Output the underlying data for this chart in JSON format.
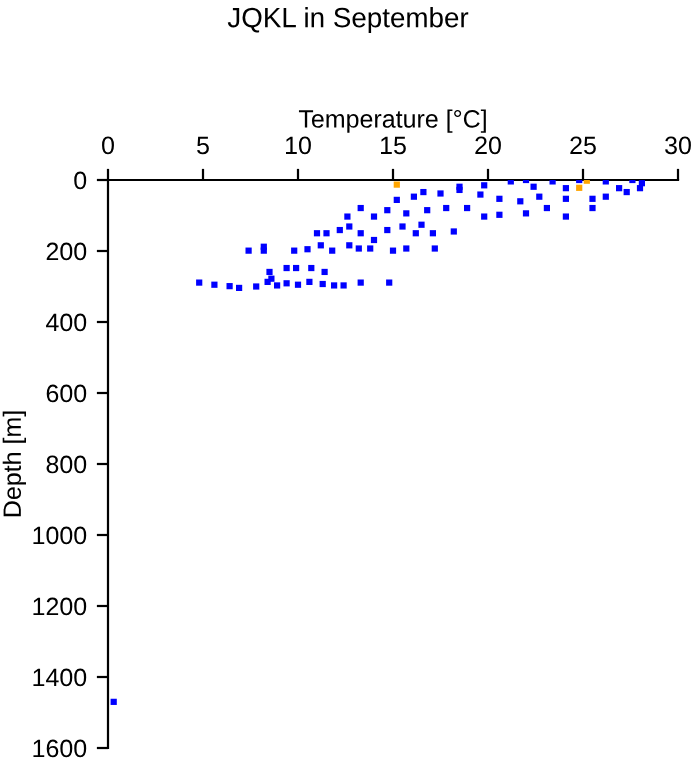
{
  "chart_data": {
    "type": "scatter",
    "title": "JQKL in September",
    "xlabel": "Temperature [°C]",
    "ylabel": "Depth [m]",
    "xlim": [
      0,
      30
    ],
    "xticks": [
      0,
      5,
      10,
      15,
      20,
      25,
      30
    ],
    "ylim": [
      1600,
      0
    ],
    "yticks": [
      0,
      200,
      400,
      600,
      800,
      1000,
      1200,
      1400,
      1600
    ],
    "marker": "square",
    "grid": false,
    "legend": false,
    "series": [
      {
        "color": "#0000ff",
        "x": [
          4.8,
          5.6,
          6.4,
          6.9,
          7.8,
          8.4,
          8.6,
          8.9,
          9.4,
          10.0,
          10.6,
          11.3,
          11.9,
          12.4,
          13.3,
          14.8,
          8.5,
          9.4,
          9.9,
          10.7,
          11.4,
          7.4,
          8.2,
          8.2,
          9.8,
          10.5,
          11.2,
          11.8,
          12.7,
          13.2,
          13.8,
          15.0,
          15.7,
          17.2,
          11.0,
          11.5,
          12.2,
          12.7,
          13.3,
          14.0,
          14.7,
          15.5,
          16.2,
          17.1,
          18.2,
          16.5,
          12.6,
          13.3,
          14.0,
          14.7,
          15.7,
          16.8,
          17.8,
          18.9,
          19.8,
          20.6,
          22.0,
          23.1,
          24.1,
          25.5,
          15.2,
          16.1,
          16.6,
          17.5,
          18.5,
          19.6,
          20.6,
          21.7,
          22.7,
          24.1,
          25.5,
          26.2,
          27.3,
          18.5,
          19.8,
          21.2,
          22.0,
          23.4,
          24.8,
          26.2,
          27.6,
          28.1,
          22.4,
          24.1,
          26.9,
          28.0,
          0.3
        ],
        "values": [
          289,
          295,
          299,
          304,
          300,
          287,
          278,
          297,
          291,
          295,
          287,
          293,
          297,
          297,
          289,
          289,
          259,
          248,
          248,
          248,
          259,
          199,
          188,
          199,
          199,
          195,
          184,
          199,
          184,
          193,
          193,
          199,
          193,
          193,
          150,
          150,
          141,
          131,
          150,
          169,
          141,
          131,
          150,
          150,
          145,
          126,
          103,
          79,
          103,
          85,
          94,
          85,
          79,
          79,
          103,
          98,
          94,
          79,
          103,
          79,
          56,
          47,
          34,
          38,
          28,
          41,
          53,
          60,
          47,
          53,
          53,
          47,
          34,
          19,
          15,
          4,
          0,
          4,
          0,
          4,
          0,
          9,
          19,
          23,
          23,
          23,
          1470
        ]
      },
      {
        "color": "#ffa500",
        "x": [
          15.2,
          25.2,
          24.8
        ],
        "values": [
          13,
          2,
          22
        ]
      }
    ]
  }
}
